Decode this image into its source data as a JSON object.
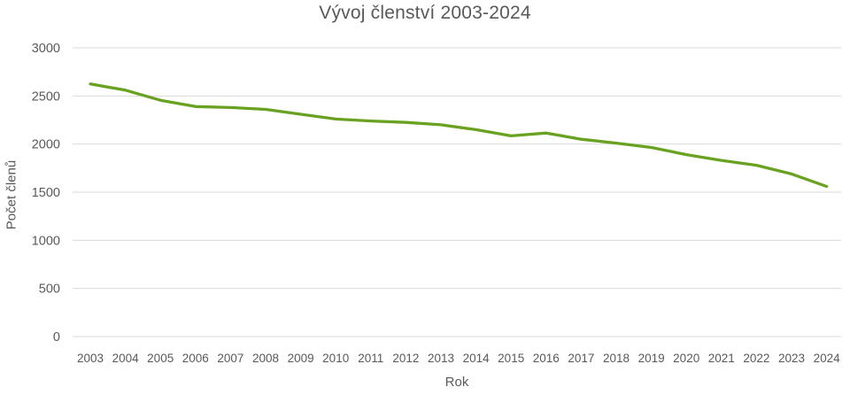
{
  "chart_data": {
    "type": "line",
    "title": "Vývoj členství 2003-2024",
    "xlabel": "Rok",
    "ylabel": "Počet členů",
    "categories": [
      "2003",
      "2004",
      "2005",
      "2006",
      "2007",
      "2008",
      "2009",
      "2010",
      "2011",
      "2012",
      "2013",
      "2014",
      "2015",
      "2016",
      "2017",
      "2018",
      "2019",
      "2020",
      "2021",
      "2022",
      "2023",
      "2024"
    ],
    "values": [
      2625,
      2560,
      2455,
      2390,
      2380,
      2360,
      2310,
      2260,
      2240,
      2225,
      2200,
      2150,
      2085,
      2115,
      2050,
      2010,
      1965,
      1890,
      1830,
      1780,
      1690,
      1560
    ],
    "ylim": [
      0,
      3000
    ],
    "yticks": [
      0,
      500,
      1000,
      1500,
      2000,
      2500,
      3000
    ],
    "grid": "horizontal",
    "legend": "none",
    "colors": {
      "line": "#69A121",
      "gridline": "#D9D9D9",
      "text": "#595959",
      "background": "#FFFFFF"
    }
  }
}
